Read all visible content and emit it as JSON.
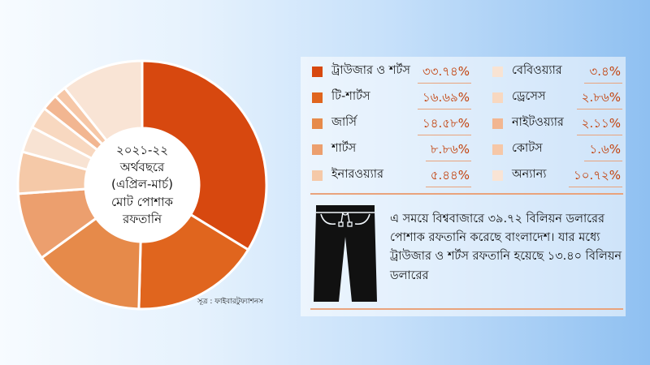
{
  "chart_data": {
    "type": "pie",
    "donut": true,
    "start_angle_deg": 0,
    "direction": "clockwise",
    "center_label": [
      "২০২১-২২",
      "অর্থবছরে",
      "(এপ্রিল-মার্চ)",
      "মোট পোশাক",
      "রফতানি"
    ],
    "source": "সূত্র : ফাইবারটুফ্যাশনস",
    "slices": [
      {
        "label": "ট্রাউজার ও শর্টস",
        "value": 33.74,
        "value_label": "৩৩.৭৪%",
        "color": "#d7480f"
      },
      {
        "label": "টি-শার্টস",
        "value": 16.69,
        "value_label": "১৬.৬৯%",
        "color": "#e0651e"
      },
      {
        "label": "জার্সি",
        "value": 14.58,
        "value_label": "১৪.৫৮%",
        "color": "#e68a4a"
      },
      {
        "label": "শার্টস",
        "value": 8.86,
        "value_label": "৮.৮৬%",
        "color": "#ec9f6e"
      },
      {
        "label": "ইনারওয়্যার",
        "value": 5.44,
        "value_label": "৫.৪৪%",
        "color": "#f5c9a8"
      },
      {
        "label": "বেবিওয়্যার",
        "value": 3.4,
        "value_label": "৩.৪%",
        "color": "#f8e3d3"
      },
      {
        "label": "ড্রেসেস",
        "value": 2.86,
        "value_label": "২.৮৬%",
        "color": "#f8d8c0"
      },
      {
        "label": "নাইটওয়্যার",
        "value": 2.11,
        "value_label": "২.১১%",
        "color": "#f2b691"
      },
      {
        "label": "কোটস",
        "value": 1.6,
        "value_label": "১.৬%",
        "color": "#f6c7a7"
      },
      {
        "label": "অন্যান্য",
        "value": 10.72,
        "value_label": "১০.৭২%",
        "color": "#f9e4d5"
      }
    ]
  },
  "note": "এ সময়ে বিশ্ববাজারে ৩৯.৭২ বিলিয়ন ডলারের পোশাক রফতানি করেছে বাংলাদেশ। যার মধ্যে ট্রাউজার ও শর্টস রফতানি হয়েছে ১৩.৪০ বিলিয়ন ডলারের",
  "icon": "trousers-icon",
  "colors": {
    "pants": "#111111",
    "divider": "#e9a37c",
    "value_text": "#c2410c"
  }
}
